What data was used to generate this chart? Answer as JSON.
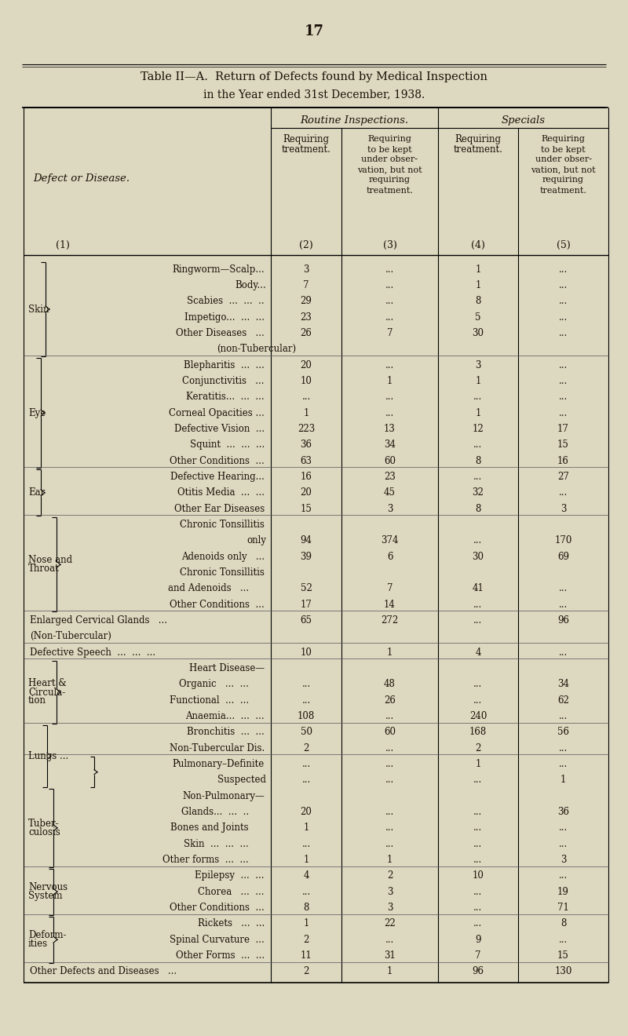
{
  "page_number": "17",
  "bg_color": "#ddd8c0",
  "title1": "Table II—A.  Return of Defects found by Medical Inspection",
  "title2": "in the Year ended 31st December, 1938.",
  "col_header_group1": "Routine Inspections.",
  "col_header_group2": "Specials",
  "col2_header": "Requiring\ntreatment.",
  "col3_header": "Requiring\nto be kept\nunder obser-\nvation, but not\nrequiring\ntreatment.",
  "col4_header": "Requiring\ntreatment.",
  "col5_header": "Requiring\nto be kept\nunder obser-\nvation, but not\nrequiring\ntreatment.",
  "rows": [
    {
      "cat": "Skin",
      "cat_row": 2,
      "label": "Ringworm—Scalp...",
      "c2": "3",
      "c3": "...",
      "c4": "1",
      "c5": "...",
      "br_open": true,
      "br_close": false
    },
    {
      "cat": "",
      "cat_row": -1,
      "label": "Body...",
      "c2": "7",
      "c3": "...",
      "c4": "1",
      "c5": "...",
      "br_open": false,
      "br_close": false,
      "right_align": true
    },
    {
      "cat": "",
      "cat_row": -1,
      "label": "Scabies  ...  ...  ..",
      "c2": "29",
      "c3": "...",
      "c4": "8",
      "c5": "...",
      "br_open": false,
      "br_close": false
    },
    {
      "cat": "",
      "cat_row": -1,
      "label": "Impetigo...  ...  ...",
      "c2": "23",
      "c3": "...",
      "c4": "5",
      "c5": "...",
      "br_open": false,
      "br_close": false
    },
    {
      "cat": "",
      "cat_row": -1,
      "label": "Other Diseases   ...",
      "c2": "26",
      "c3": "7",
      "c4": "30",
      "c5": "...",
      "br_open": false,
      "br_close": false
    },
    {
      "cat": "",
      "cat_row": -1,
      "label": "(non-Tubercular)",
      "c2": "",
      "c3": "",
      "c4": "",
      "c5": "",
      "br_open": false,
      "br_close": true,
      "sub": true
    },
    {
      "cat": "Eye",
      "cat_row": 4,
      "label": "Blepharitis  ...  ...",
      "c2": "20",
      "c3": "...",
      "c4": "3",
      "c5": "...",
      "br_open": true,
      "br_close": false
    },
    {
      "cat": "",
      "cat_row": -1,
      "label": "Conjunctivitis   ...",
      "c2": "10",
      "c3": "1",
      "c4": "1",
      "c5": "...",
      "br_open": false,
      "br_close": false
    },
    {
      "cat": "",
      "cat_row": -1,
      "label": "Keratitis...  ...  ...",
      "c2": "...",
      "c3": "...",
      "c4": "...",
      "c5": "...",
      "br_open": false,
      "br_close": false
    },
    {
      "cat": "",
      "cat_row": -1,
      "label": "Corneal Opacities ...",
      "c2": "1",
      "c3": "...",
      "c4": "1",
      "c5": "...",
      "br_open": false,
      "br_close": false
    },
    {
      "cat": "",
      "cat_row": -1,
      "label": "Defective Vision  ...",
      "c2": "223",
      "c3": "13",
      "c4": "12",
      "c5": "17",
      "br_open": false,
      "br_close": false
    },
    {
      "cat": "",
      "cat_row": -1,
      "label": "Squint  ...  ...  ...",
      "c2": "36",
      "c3": "34",
      "c4": "...",
      "c5": "15",
      "br_open": false,
      "br_close": false
    },
    {
      "cat": "",
      "cat_row": -1,
      "label": "Other Conditions  ...",
      "c2": "63",
      "c3": "60",
      "c4": "8",
      "c5": "16",
      "br_open": false,
      "br_close": true
    },
    {
      "cat": "Ear",
      "cat_row": 1,
      "label": "Defective Hearing...",
      "c2": "16",
      "c3": "23",
      "c4": "...",
      "c5": "27",
      "br_open": true,
      "br_close": false
    },
    {
      "cat": "",
      "cat_row": -1,
      "label": "Otitis Media  ...  ...",
      "c2": "20",
      "c3": "45",
      "c4": "32",
      "c5": "...",
      "br_open": false,
      "br_close": false
    },
    {
      "cat": "",
      "cat_row": -1,
      "label": "Other Ear Diseases",
      "c2": "15",
      "c3": "3",
      "c4": "8",
      "c5": "3",
      "br_open": false,
      "br_close": true
    },
    {
      "cat": "Nose and\nThroat",
      "cat_row": 2,
      "label": "Chronic Tonsillitis",
      "c2": "",
      "c3": "",
      "c4": "",
      "c5": "",
      "br_open": true,
      "br_close": false
    },
    {
      "cat": "",
      "cat_row": -1,
      "label": "only",
      "c2": "94",
      "c3": "374",
      "c4": "...",
      "c5": "170",
      "br_open": false,
      "br_close": false,
      "right_align": true
    },
    {
      "cat": "",
      "cat_row": -1,
      "label": "Adenoids only   ...",
      "c2": "39",
      "c3": "6",
      "c4": "30",
      "c5": "69",
      "br_open": false,
      "br_close": false
    },
    {
      "cat": "",
      "cat_row": -1,
      "label": "Chronic Tonsillitis",
      "c2": "",
      "c3": "",
      "c4": "",
      "c5": "",
      "br_open": false,
      "br_close": false
    },
    {
      "cat": "",
      "cat_row": -1,
      "label": "and Adenoids   ...",
      "c2": "52",
      "c3": "7",
      "c4": "41",
      "c5": "...",
      "br_open": false,
      "br_close": false,
      "sub_indent": true
    },
    {
      "cat": "",
      "cat_row": -1,
      "label": "Other Conditions  ...",
      "c2": "17",
      "c3": "14",
      "c4": "...",
      "c5": "...",
      "br_open": false,
      "br_close": true
    },
    {
      "cat": "Enlarged Cervical Glands",
      "cat_row": -1,
      "label": "Enlarged Cervical Glands   ...",
      "c2": "65",
      "c3": "272",
      "c4": "...",
      "c5": "96",
      "br_open": false,
      "br_close": false,
      "full_row": true
    },
    {
      "cat": "",
      "cat_row": -1,
      "label": "(Non-Tubercular)",
      "c2": "",
      "c3": "",
      "c4": "",
      "c5": "",
      "br_open": false,
      "br_close": false,
      "full_row": true,
      "sub": true
    },
    {
      "cat": "Defective Speech",
      "cat_row": -1,
      "label": "Defective Speech  ...  ...  ...",
      "c2": "10",
      "c3": "1",
      "c4": "4",
      "c5": "...",
      "br_open": false,
      "br_close": false,
      "full_row": true
    },
    {
      "cat": "Heart &\nCircula-\ntion",
      "cat_row": 2,
      "label": "Heart Disease—",
      "c2": "",
      "c3": "",
      "c4": "",
      "c5": "",
      "br_open": true,
      "br_close": false
    },
    {
      "cat": "",
      "cat_row": -1,
      "label": "Organic   ...  ...",
      "c2": "...",
      "c3": "48",
      "c4": "...",
      "c5": "34",
      "br_open": false,
      "br_close": false,
      "sub_indent": true
    },
    {
      "cat": "",
      "cat_row": -1,
      "label": "Functional  ...  ...",
      "c2": "...",
      "c3": "26",
      "c4": "...",
      "c5": "62",
      "br_open": false,
      "br_close": false,
      "sub_indent": true
    },
    {
      "cat": "",
      "cat_row": -1,
      "label": "Anaemia...  ...  ...",
      "c2": "108",
      "c3": "...",
      "c4": "240",
      "c5": "...",
      "br_open": false,
      "br_close": true
    },
    {
      "cat": "Lungs ...",
      "cat_row": 1,
      "label": "Bronchitis  ...  ...",
      "c2": "50",
      "c3": "60",
      "c4": "168",
      "c5": "56",
      "br_open": true,
      "br_close": false
    },
    {
      "cat": "",
      "cat_row": -1,
      "label": "Non-Tubercular Dis.",
      "c2": "2",
      "c3": "...",
      "c4": "2",
      "c5": "...",
      "br_open": false,
      "br_close": true
    },
    {
      "cat": "",
      "cat_row": -1,
      "label": "Pulmonary–Definite",
      "c2": "...",
      "c3": "...",
      "c4": "1",
      "c5": "...",
      "br_open": true,
      "br_close": false
    },
    {
      "cat": "",
      "cat_row": -1,
      "label": "Suspected",
      "c2": "...",
      "c3": "...",
      "c4": "...",
      "c5": "1",
      "br_open": false,
      "br_close": false,
      "right_align": true
    },
    {
      "cat": "Tuber-\nculosis",
      "cat_row": 2,
      "label": "Non-Pulmonary—",
      "c2": "",
      "c3": "",
      "c4": "",
      "c5": "",
      "br_open": false,
      "br_close": false
    },
    {
      "cat": "",
      "cat_row": -1,
      "label": "Glands...  ...  ..",
      "c2": "20",
      "c3": "...",
      "c4": "...",
      "c5": "36",
      "br_open": false,
      "br_close": false,
      "sub_indent": true
    },
    {
      "cat": "",
      "cat_row": -1,
      "label": "Bones and Joints",
      "c2": "1",
      "c3": "...",
      "c4": "...",
      "c5": "...",
      "br_open": false,
      "br_close": false,
      "sub_indent": true
    },
    {
      "cat": "",
      "cat_row": -1,
      "label": "Skin  ...  ...  ...",
      "c2": "...",
      "c3": "...",
      "c4": "...",
      "c5": "...",
      "br_open": false,
      "br_close": false,
      "sub_indent": true
    },
    {
      "cat": "",
      "cat_row": -1,
      "label": "Other forms  ...  ...",
      "c2": "1",
      "c3": "1",
      "c4": "...",
      "c5": "3",
      "br_open": false,
      "br_close": true,
      "sub_indent": true
    },
    {
      "cat": "Nervous\nSystem",
      "cat_row": 1,
      "label": "Epilepsy  ...  ...",
      "c2": "4",
      "c3": "2",
      "c4": "10",
      "c5": "...",
      "br_open": true,
      "br_close": false
    },
    {
      "cat": "",
      "cat_row": -1,
      "label": "Chorea   ...  ...",
      "c2": "...",
      "c3": "3",
      "c4": "...",
      "c5": "19",
      "br_open": false,
      "br_close": false
    },
    {
      "cat": "",
      "cat_row": -1,
      "label": "Other Conditions  ...",
      "c2": "8",
      "c3": "3",
      "c4": "...",
      "c5": "71",
      "br_open": false,
      "br_close": true
    },
    {
      "cat": "Deform-\nities",
      "cat_row": 1,
      "label": "Rickets   ...  ...",
      "c2": "1",
      "c3": "22",
      "c4": "...",
      "c5": "8",
      "br_open": true,
      "br_close": false
    },
    {
      "cat": "",
      "cat_row": -1,
      "label": "Spinal Curvature  ...",
      "c2": "2",
      "c3": "...",
      "c4": "9",
      "c5": "...",
      "br_open": false,
      "br_close": false
    },
    {
      "cat": "",
      "cat_row": -1,
      "label": "Other Forms  ...  ...",
      "c2": "11",
      "c3": "31",
      "c4": "7",
      "c5": "15",
      "br_open": false,
      "br_close": true
    },
    {
      "cat": "Other Defects",
      "cat_row": -1,
      "label": "Other Defects and Diseases   ...",
      "c2": "2",
      "c3": "1",
      "c4": "96",
      "c5": "130",
      "br_open": false,
      "br_close": false,
      "full_row": true
    }
  ]
}
